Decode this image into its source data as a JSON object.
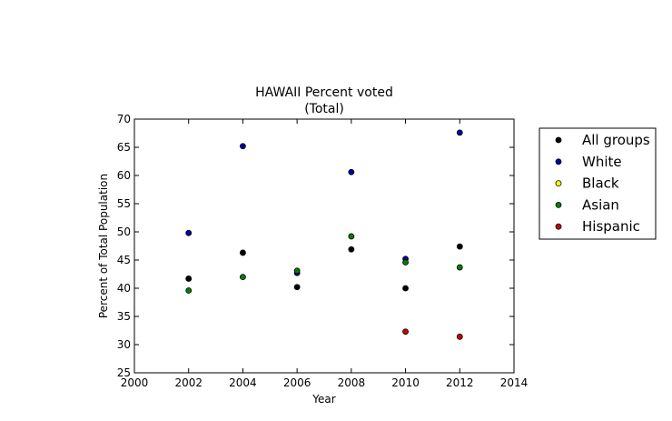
{
  "chart_data": {
    "type": "scatter",
    "title_line1": "HAWAII Percent voted",
    "title_line2": "(Total)",
    "xlabel": "Year",
    "ylabel": "Percent of Total Population",
    "xlim": [
      2000,
      2014
    ],
    "ylim": [
      25,
      70
    ],
    "xticks": [
      "2000",
      "2002",
      "2004",
      "2006",
      "2008",
      "2010",
      "2012",
      "2014"
    ],
    "yticks": [
      "25",
      "30",
      "35",
      "40",
      "45",
      "50",
      "55",
      "60",
      "65",
      "70"
    ],
    "legend_position": "outside-right-top",
    "series": [
      {
        "name": "All groups",
        "color": "#000000",
        "points": [
          [
            2002,
            41.7
          ],
          [
            2004,
            46.3
          ],
          [
            2006,
            40.2
          ],
          [
            2008,
            46.9
          ],
          [
            2010,
            40.0
          ],
          [
            2012,
            47.4
          ]
        ]
      },
      {
        "name": "White",
        "color": "#0000aa",
        "points": [
          [
            2002,
            49.8
          ],
          [
            2004,
            65.2
          ],
          [
            2006,
            42.7
          ],
          [
            2008,
            60.6
          ],
          [
            2010,
            45.2
          ],
          [
            2012,
            67.6
          ]
        ]
      },
      {
        "name": "Black",
        "color": "#ffff00",
        "points": []
      },
      {
        "name": "Asian",
        "color": "#008000",
        "points": [
          [
            2002,
            39.6
          ],
          [
            2004,
            42.0
          ],
          [
            2006,
            43.1
          ],
          [
            2008,
            49.2
          ],
          [
            2010,
            44.6
          ],
          [
            2012,
            43.7
          ]
        ]
      },
      {
        "name": "Hispanic",
        "color": "#cc0000",
        "points": [
          [
            2010,
            32.3
          ],
          [
            2012,
            31.4
          ]
        ]
      }
    ]
  }
}
